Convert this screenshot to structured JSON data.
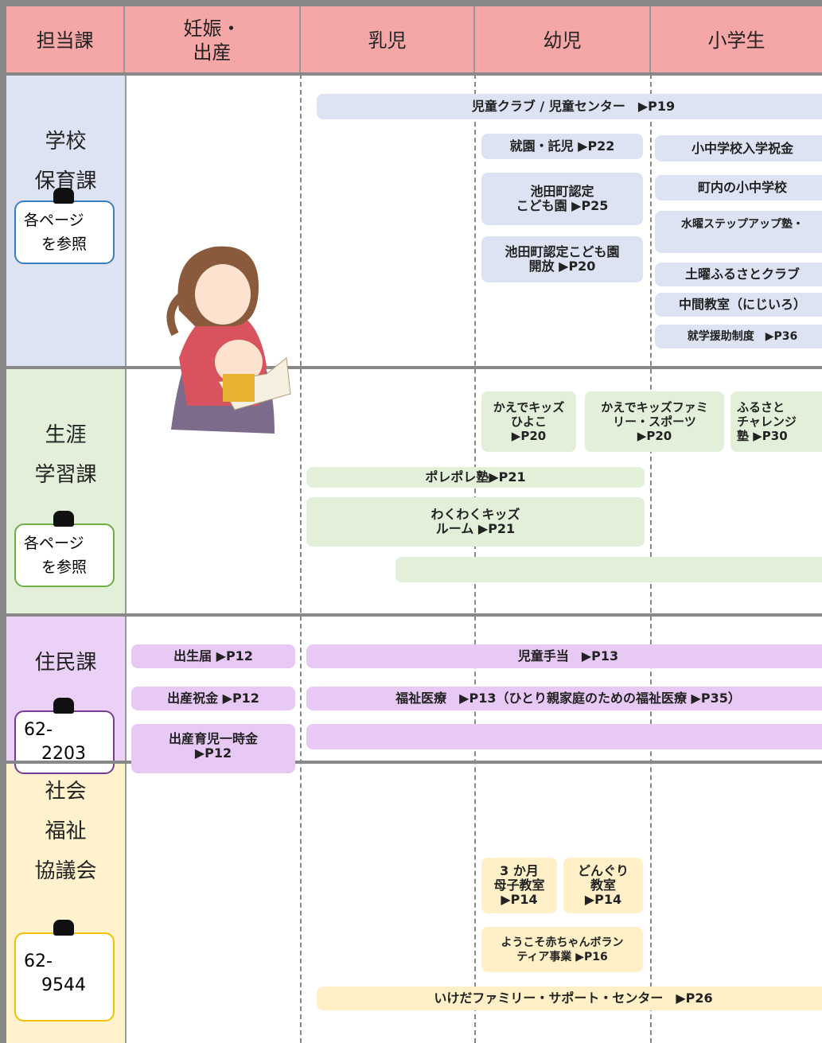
{
  "header": {
    "columns": [
      [
        "担当課"
      ],
      [
        "妊娠・",
        "出産"
      ],
      [
        "乳児"
      ],
      [
        "幼児"
      ],
      [
        "小学生"
      ]
    ]
  },
  "departments": [
    {
      "name": [
        "学校",
        "保育課"
      ],
      "contact": [
        "各ページ",
        "を参照"
      ],
      "programs": [
        [
          "児童クラブ / 児童センター　▶P19"
        ],
        [
          "就園・託児 ▶P22"
        ],
        [
          "小中学校入学祝金"
        ],
        [
          "池田町認定",
          "こども園 ▶P25"
        ],
        [
          "町内の小中学校"
        ],
        [
          "水曜ステップアップ塾・"
        ],
        [
          "池田町認定こども園",
          "開放 ▶P20"
        ],
        [
          "土曜ふるさとクラブ"
        ],
        [
          "中間教室（にじいろ）"
        ],
        [
          "就学援助制度　▶P36"
        ]
      ]
    },
    {
      "name": [
        "生涯",
        "学習課"
      ],
      "contact": [
        "各ページ",
        "を参照"
      ],
      "programs": [
        [
          "かえでキッズ",
          "ひよこ",
          "▶P20"
        ],
        [
          "かえでキッズファミ",
          "リー・スポーツ",
          "▶P20"
        ],
        [
          "ふるさと",
          "チャレンジ",
          "塾 ▶P30"
        ],
        [
          "ポレポレ塾▶P21"
        ],
        [
          "わくわくキッズ",
          "ルーム ▶P21"
        ]
      ]
    },
    {
      "name": [
        "住民課"
      ],
      "contact": [
        "62-",
        "2203"
      ],
      "programs": [
        [
          "出生届 ▶P12"
        ],
        [
          "児童手当　▶P13"
        ],
        [
          "出産祝金 ▶P12"
        ],
        [
          "福祉医療　▶P13（ひとり親家庭のための福祉医療 ▶P35）"
        ],
        [
          "出産育児一時金",
          "▶P12"
        ]
      ]
    },
    {
      "name": [
        "社会",
        "福祉",
        "協議会"
      ],
      "contact": [
        "62-",
        "9544"
      ],
      "programs": [
        [
          "3 か月",
          "母子教室",
          "▶P14"
        ],
        [
          "どんぐり",
          "教室",
          "▶P14"
        ],
        [
          "ようこそ赤ちゃんボラン",
          "ティア事業 ▶P16"
        ],
        [
          "いけだファミリー・サポート・センター　▶P26"
        ]
      ]
    }
  ]
}
